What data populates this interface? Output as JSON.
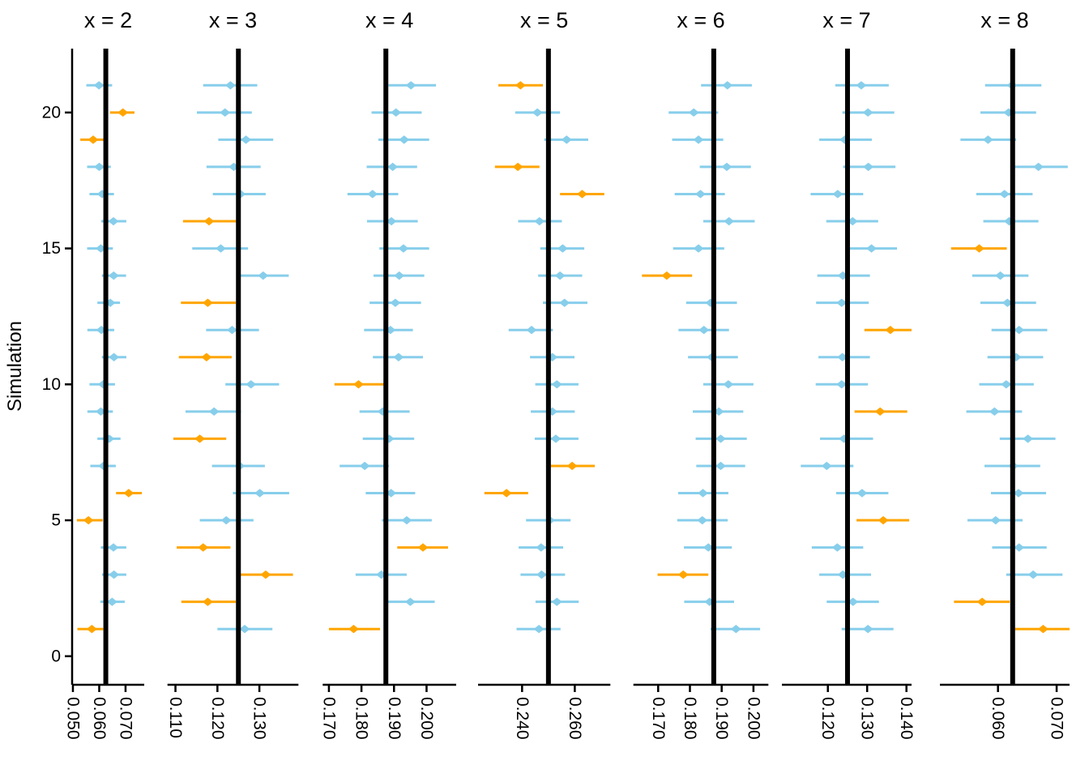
{
  "chart_data": {
    "type": "scatter",
    "subtype": "faceted-ci-coverage-plot",
    "title": "",
    "xlabel": "",
    "ylabel": "Simulation",
    "y_ticks": [
      0,
      5,
      10,
      15,
      20
    ],
    "ylim": [
      -1.05,
      22.35
    ],
    "grid": "off",
    "legend_position": "none",
    "colors": {
      "covered": "#87CEEB",
      "missed": "#FFA500",
      "true_value_line": "#000000",
      "axis": "#000000"
    },
    "series_columns": [
      "sim",
      "estimate",
      "lower",
      "upper",
      "covered"
    ],
    "facets": [
      {
        "label": "x = 2",
        "true_value": 0.0625,
        "x_ticks": [
          0.05,
          0.06,
          0.07
        ],
        "xlim": [
          0.0497,
          0.0771
        ],
        "sims": [
          [
            1,
            0.0572,
            0.0517,
            0.0615,
            false
          ],
          [
            2,
            0.0649,
            0.0604,
            0.0697,
            true
          ],
          [
            3,
            0.0656,
            0.0611,
            0.0703,
            true
          ],
          [
            4,
            0.0654,
            0.0606,
            0.0703,
            true
          ],
          [
            5,
            0.0559,
            0.0515,
            0.0613,
            false
          ],
          [
            6,
            0.0712,
            0.0664,
            0.0762,
            false
          ],
          [
            7,
            0.0616,
            0.0566,
            0.0663,
            true
          ],
          [
            8,
            0.0638,
            0.0593,
            0.0681,
            true
          ],
          [
            9,
            0.0606,
            0.0555,
            0.0652,
            true
          ],
          [
            10,
            0.0615,
            0.0563,
            0.066,
            true
          ],
          [
            11,
            0.0656,
            0.061,
            0.0703,
            true
          ],
          [
            12,
            0.0608,
            0.0555,
            0.0657,
            true
          ],
          [
            13,
            0.0642,
            0.0593,
            0.0679,
            true
          ],
          [
            14,
            0.0655,
            0.061,
            0.0702,
            true
          ],
          [
            15,
            0.0606,
            0.0554,
            0.0652,
            true
          ],
          [
            16,
            0.0654,
            0.0608,
            0.0703,
            true
          ],
          [
            17,
            0.0611,
            0.0563,
            0.0656,
            true
          ],
          [
            18,
            0.06,
            0.0554,
            0.0644,
            true
          ],
          [
            19,
            0.0577,
            0.0528,
            0.062,
            false
          ],
          [
            20,
            0.069,
            0.0641,
            0.0734,
            false
          ],
          [
            21,
            0.0599,
            0.0551,
            0.0649,
            true
          ]
        ]
      },
      {
        "label": "x = 3",
        "true_value": 0.125,
        "x_ticks": [
          0.11,
          0.12,
          0.13
        ],
        "xlim": [
          0.1081,
          0.1393
        ],
        "sims": [
          [
            1,
            0.1265,
            0.12,
            0.1331,
            true
          ],
          [
            2,
            0.1177,
            0.1114,
            0.1244,
            false
          ],
          [
            3,
            0.1315,
            0.1253,
            0.138,
            false
          ],
          [
            4,
            0.1166,
            0.1103,
            0.1231,
            false
          ],
          [
            5,
            0.1221,
            0.1158,
            0.1286,
            true
          ],
          [
            6,
            0.1301,
            0.1237,
            0.1371,
            true
          ],
          [
            7,
            0.1253,
            0.1187,
            0.1313,
            true
          ],
          [
            8,
            0.1158,
            0.1095,
            0.1221,
            false
          ],
          [
            9,
            0.1192,
            0.1124,
            0.1256,
            true
          ],
          [
            10,
            0.128,
            0.1219,
            0.1347,
            true
          ],
          [
            11,
            0.1174,
            0.1108,
            0.1234,
            false
          ],
          [
            12,
            0.1235,
            0.1173,
            0.1299,
            true
          ],
          [
            13,
            0.1177,
            0.1113,
            0.1244,
            false
          ],
          [
            14,
            0.1309,
            0.1248,
            0.137,
            true
          ],
          [
            15,
            0.1208,
            0.114,
            0.1273,
            true
          ],
          [
            16,
            0.118,
            0.1118,
            0.1247,
            false
          ],
          [
            17,
            0.1255,
            0.1189,
            0.1315,
            true
          ],
          [
            18,
            0.1239,
            0.1174,
            0.1303,
            true
          ],
          [
            19,
            0.1268,
            0.1202,
            0.1333,
            true
          ],
          [
            20,
            0.1218,
            0.1151,
            0.1282,
            true
          ],
          [
            21,
            0.1231,
            0.1166,
            0.1295,
            true
          ]
        ]
      },
      {
        "label": "x = 4",
        "true_value": 0.1875,
        "x_ticks": [
          0.17,
          0.18,
          0.19,
          0.2
        ],
        "xlim": [
          0.1681,
          0.2091
        ],
        "sims": [
          [
            1,
            0.1776,
            0.17,
            0.1857,
            false
          ],
          [
            2,
            0.195,
            0.187,
            0.2025,
            true
          ],
          [
            3,
            0.1861,
            0.1782,
            0.1939,
            true
          ],
          [
            4,
            0.1989,
            0.191,
            0.2066,
            false
          ],
          [
            5,
            0.1939,
            0.1863,
            0.2016,
            true
          ],
          [
            6,
            0.1891,
            0.1813,
            0.1965,
            true
          ],
          [
            7,
            0.181,
            0.1733,
            0.1884,
            true
          ],
          [
            8,
            0.1885,
            0.1804,
            0.1962,
            true
          ],
          [
            9,
            0.1865,
            0.1794,
            0.1948,
            true
          ],
          [
            10,
            0.1791,
            0.1717,
            0.1873,
            false
          ],
          [
            11,
            0.1914,
            0.1835,
            0.1989,
            true
          ],
          [
            12,
            0.1889,
            0.1808,
            0.1958,
            true
          ],
          [
            13,
            0.1904,
            0.1825,
            0.1983,
            true
          ],
          [
            14,
            0.1916,
            0.1837,
            0.1993,
            true
          ],
          [
            15,
            0.1929,
            0.1855,
            0.2008,
            true
          ],
          [
            16,
            0.1892,
            0.1817,
            0.1973,
            true
          ],
          [
            17,
            0.1834,
            0.1757,
            0.1913,
            true
          ],
          [
            18,
            0.1896,
            0.1816,
            0.1971,
            true
          ],
          [
            19,
            0.1931,
            0.1852,
            0.2008,
            true
          ],
          [
            20,
            0.1906,
            0.1831,
            0.1985,
            true
          ],
          [
            21,
            0.1952,
            0.1883,
            0.2029,
            true
          ]
        ]
      },
      {
        "label": "x = 5",
        "true_value": 0.25,
        "x_ticks": [
          0.24,
          0.26
        ],
        "xlim": [
          0.2233,
          0.2735
        ],
        "sims": [
          [
            1,
            0.2464,
            0.2379,
            0.2546,
            true
          ],
          [
            2,
            0.2532,
            0.2451,
            0.2615,
            true
          ],
          [
            3,
            0.2474,
            0.2394,
            0.2563,
            true
          ],
          [
            4,
            0.2472,
            0.2387,
            0.2556,
            true
          ],
          [
            5,
            0.2505,
            0.2415,
            0.2584,
            true
          ],
          [
            6,
            0.2341,
            0.2257,
            0.2423,
            false
          ],
          [
            7,
            0.259,
            0.2507,
            0.2676,
            false
          ],
          [
            8,
            0.2528,
            0.2448,
            0.2614,
            true
          ],
          [
            9,
            0.2515,
            0.2433,
            0.26,
            true
          ],
          [
            10,
            0.2532,
            0.245,
            0.2614,
            true
          ],
          [
            11,
            0.2515,
            0.243,
            0.2599,
            true
          ],
          [
            12,
            0.2436,
            0.2349,
            0.2517,
            true
          ],
          [
            13,
            0.2561,
            0.2479,
            0.2648,
            true
          ],
          [
            14,
            0.2544,
            0.2461,
            0.2628,
            true
          ],
          [
            15,
            0.2554,
            0.2469,
            0.2636,
            true
          ],
          [
            16,
            0.2466,
            0.2385,
            0.2551,
            true
          ],
          [
            17,
            0.2628,
            0.2544,
            0.2712,
            false
          ],
          [
            18,
            0.2384,
            0.2297,
            0.2466,
            false
          ],
          [
            19,
            0.2569,
            0.2484,
            0.2651,
            true
          ],
          [
            20,
            0.2458,
            0.2374,
            0.2544,
            true
          ],
          [
            21,
            0.2394,
            0.231,
            0.2479,
            false
          ]
        ]
      },
      {
        "label": "x = 6",
        "true_value": 0.1875,
        "x_ticks": [
          0.17,
          0.18,
          0.19,
          0.2
        ],
        "xlim": [
          0.1622,
          0.2047
        ],
        "sims": [
          [
            1,
            0.1945,
            0.1865,
            0.2021,
            true
          ],
          [
            2,
            0.1862,
            0.1782,
            0.1939,
            true
          ],
          [
            3,
            0.1779,
            0.1698,
            0.1858,
            false
          ],
          [
            4,
            0.1858,
            0.1781,
            0.1932,
            true
          ],
          [
            5,
            0.1839,
            0.176,
            0.1919,
            true
          ],
          [
            6,
            0.1841,
            0.1763,
            0.1921,
            true
          ],
          [
            7,
            0.1897,
            0.182,
            0.1974,
            true
          ],
          [
            8,
            0.1897,
            0.1818,
            0.1979,
            true
          ],
          [
            9,
            0.1891,
            0.1809,
            0.1968,
            true
          ],
          [
            10,
            0.1921,
            0.1842,
            0.2,
            true
          ],
          [
            11,
            0.1869,
            0.1794,
            0.1951,
            true
          ],
          [
            12,
            0.1844,
            0.1764,
            0.1923,
            true
          ],
          [
            13,
            0.1865,
            0.1788,
            0.1948,
            true
          ],
          [
            14,
            0.1727,
            0.1649,
            0.1807,
            false
          ],
          [
            15,
            0.1827,
            0.1747,
            0.1908,
            true
          ],
          [
            16,
            0.1923,
            0.1842,
            0.2004,
            true
          ],
          [
            17,
            0.1833,
            0.1752,
            0.191,
            true
          ],
          [
            18,
            0.1916,
            0.1831,
            0.1992,
            true
          ],
          [
            19,
            0.1827,
            0.1744,
            0.1905,
            true
          ],
          [
            20,
            0.1812,
            0.1733,
            0.1889,
            true
          ],
          [
            21,
            0.1918,
            0.1835,
            0.1995,
            true
          ]
        ]
      },
      {
        "label": "x = 7",
        "true_value": 0.125,
        "x_ticks": [
          0.12,
          0.13,
          0.14
        ],
        "xlim": [
          0.1083,
          0.1413
        ],
        "sims": [
          [
            1,
            0.1302,
            0.1235,
            0.1367,
            true
          ],
          [
            2,
            0.1264,
            0.1197,
            0.133,
            true
          ],
          [
            3,
            0.1238,
            0.1178,
            0.131,
            true
          ],
          [
            4,
            0.1224,
            0.1159,
            0.129,
            true
          ],
          [
            5,
            0.1341,
            0.1273,
            0.1407,
            false
          ],
          [
            6,
            0.1287,
            0.1221,
            0.1354,
            true
          ],
          [
            7,
            0.1197,
            0.1131,
            0.1265,
            true
          ],
          [
            8,
            0.1241,
            0.118,
            0.1315,
            true
          ],
          [
            9,
            0.1333,
            0.1268,
            0.1402,
            false
          ],
          [
            10,
            0.1235,
            0.1169,
            0.1302,
            true
          ],
          [
            11,
            0.1237,
            0.1176,
            0.1307,
            true
          ],
          [
            12,
            0.1359,
            0.1293,
            0.142,
            false
          ],
          [
            13,
            0.1235,
            0.117,
            0.1304,
            true
          ],
          [
            14,
            0.1238,
            0.1173,
            0.1307,
            true
          ],
          [
            15,
            0.1311,
            0.1245,
            0.1376,
            true
          ],
          [
            16,
            0.1263,
            0.1196,
            0.1328,
            true
          ],
          [
            17,
            0.1225,
            0.1156,
            0.129,
            true
          ],
          [
            18,
            0.1303,
            0.1239,
            0.1372,
            true
          ],
          [
            19,
            0.1243,
            0.1178,
            0.1312,
            true
          ],
          [
            20,
            0.1302,
            0.1237,
            0.1369,
            true
          ],
          [
            21,
            0.1285,
            0.1219,
            0.1355,
            true
          ]
        ]
      },
      {
        "label": "x = 8",
        "true_value": 0.0625,
        "x_ticks": [
          0.06,
          0.07
        ],
        "xlim": [
          0.0501,
          0.0722
        ],
        "sims": [
          [
            1,
            0.0677,
            0.0629,
            0.0722,
            false
          ],
          [
            2,
            0.0573,
            0.0525,
            0.062,
            false
          ],
          [
            3,
            0.066,
            0.0614,
            0.071,
            true
          ],
          [
            4,
            0.0636,
            0.059,
            0.0683,
            true
          ],
          [
            5,
            0.0596,
            0.0548,
            0.0642,
            true
          ],
          [
            6,
            0.0635,
            0.0588,
            0.0682,
            true
          ],
          [
            7,
            0.0626,
            0.0577,
            0.0672,
            true
          ],
          [
            8,
            0.0651,
            0.0603,
            0.0698,
            true
          ],
          [
            9,
            0.0594,
            0.0546,
            0.0641,
            true
          ],
          [
            10,
            0.0614,
            0.0568,
            0.0661,
            true
          ],
          [
            11,
            0.0631,
            0.0582,
            0.0677,
            true
          ],
          [
            12,
            0.0636,
            0.0589,
            0.0684,
            true
          ],
          [
            13,
            0.0616,
            0.057,
            0.0665,
            true
          ],
          [
            14,
            0.0604,
            0.0556,
            0.0652,
            true
          ],
          [
            15,
            0.0568,
            0.052,
            0.0615,
            false
          ],
          [
            16,
            0.0619,
            0.0575,
            0.0669,
            true
          ],
          [
            17,
            0.0611,
            0.0563,
            0.0659,
            true
          ],
          [
            18,
            0.0669,
            0.0621,
            0.0719,
            true
          ],
          [
            19,
            0.0583,
            0.0536,
            0.0631,
            true
          ],
          [
            20,
            0.0618,
            0.057,
            0.0665,
            true
          ],
          [
            21,
            0.0624,
            0.0578,
            0.0674,
            true
          ]
        ]
      }
    ]
  }
}
